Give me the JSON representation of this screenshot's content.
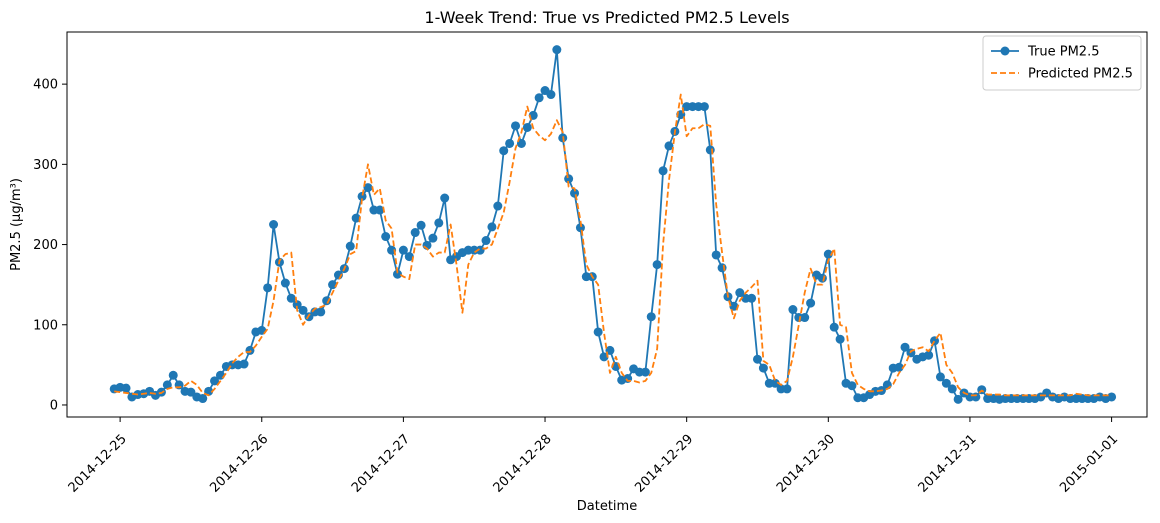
{
  "chart_data": {
    "type": "line",
    "title": "1-Week Trend: True vs Predicted PM2.5 Levels",
    "xlabel": "Datetime",
    "ylabel": "PM2.5 (µg/m³)",
    "x_unit": "hour",
    "x_start": "2014-12-24 23:00",
    "xlim": [
      "2014-12-24 15:00",
      "2015-01-01 06:00"
    ],
    "ylim": [
      -15,
      465
    ],
    "xticks": [
      "2014-12-25",
      "2014-12-26",
      "2014-12-27",
      "2014-12-28",
      "2014-12-29",
      "2014-12-30",
      "2014-12-31",
      "2015-01-01"
    ],
    "yticks": [
      0,
      100,
      200,
      300,
      400
    ],
    "grid": false,
    "legend_position": "top-right",
    "series": [
      {
        "name": "True PM2.5",
        "color": "#1f77b4",
        "style": "solid",
        "marker": "circle",
        "values": [
          20,
          22,
          21,
          10,
          13,
          14,
          17,
          12,
          16,
          25,
          37,
          25,
          17,
          16,
          10,
          8,
          17,
          30,
          37,
          48,
          50,
          50,
          51,
          68,
          91,
          93,
          146,
          225,
          178,
          152,
          133,
          125,
          118,
          110,
          116,
          116,
          130,
          150,
          162,
          170,
          198,
          233,
          260,
          271,
          243,
          243,
          210,
          193,
          163,
          193,
          185,
          215,
          224,
          199,
          208,
          227,
          258,
          181,
          185,
          190,
          193,
          193,
          193,
          205,
          222,
          248,
          317,
          326,
          348,
          326,
          346,
          361,
          383,
          392,
          387,
          443,
          333,
          282,
          264,
          221,
          160,
          160,
          91,
          60,
          68,
          48,
          31,
          33,
          45,
          41,
          41,
          110,
          175,
          292,
          323,
          341,
          362,
          372,
          372,
          372,
          372,
          318,
          187,
          171,
          135,
          123,
          140,
          133,
          133,
          57,
          46,
          27,
          27,
          20,
          20,
          119,
          109,
          109,
          127,
          162,
          158,
          188,
          97,
          82,
          27,
          24,
          9,
          9,
          13,
          17,
          18,
          25,
          46,
          47,
          72,
          65,
          57,
          60,
          62,
          80,
          35,
          27,
          20,
          7,
          15,
          10,
          10,
          19,
          8,
          8,
          7,
          8,
          8,
          8,
          8,
          8,
          8,
          10,
          15,
          10,
          8,
          10,
          8,
          8,
          8,
          8,
          8,
          10,
          8,
          10
        ]
      },
      {
        "name": "Predicted PM2.5",
        "color": "#ff7f0e",
        "style": "dashed",
        "marker": "none",
        "values": [
          17,
          16,
          15,
          14,
          13,
          14,
          15,
          14,
          15,
          20,
          22,
          22,
          24,
          30,
          25,
          15,
          12,
          20,
          30,
          40,
          52,
          60,
          66,
          66,
          74,
          85,
          95,
          130,
          180,
          188,
          190,
          118,
          100,
          112,
          120,
          122,
          125,
          140,
          155,
          170,
          188,
          192,
          258,
          300,
          262,
          270,
          230,
          220,
          165,
          160,
          157,
          200,
          200,
          195,
          185,
          190,
          190,
          225,
          175,
          115,
          175,
          190,
          195,
          195,
          200,
          220,
          240,
          278,
          320,
          340,
          372,
          345,
          336,
          330,
          338,
          355,
          340,
          272,
          270,
          230,
          175,
          160,
          150,
          90,
          40,
          60,
          40,
          30,
          30,
          28,
          30,
          40,
          70,
          200,
          280,
          340,
          387,
          335,
          345,
          345,
          350,
          348,
          250,
          190,
          135,
          108,
          130,
          140,
          147,
          155,
          55,
          50,
          30,
          25,
          30,
          60,
          100,
          140,
          170,
          150,
          150,
          180,
          195,
          100,
          97,
          40,
          25,
          20,
          17,
          17,
          18,
          20,
          26,
          40,
          50,
          67,
          70,
          72,
          67,
          80,
          90,
          50,
          40,
          22,
          15,
          12,
          12,
          18,
          13,
          13,
          13,
          12,
          12,
          12,
          12,
          12,
          12,
          12,
          12,
          12,
          12,
          12,
          12,
          14,
          13,
          12,
          12,
          12,
          12,
          12
        ]
      }
    ]
  }
}
